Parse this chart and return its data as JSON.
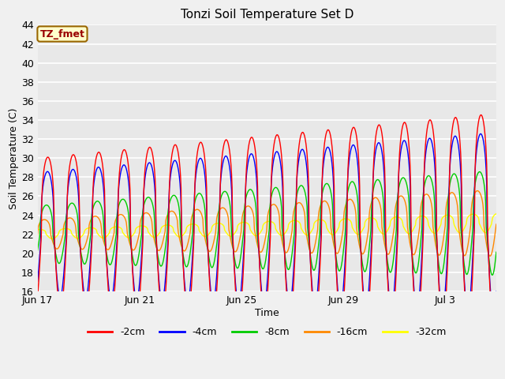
{
  "title": "Tonzi Soil Temperature Set D",
  "xlabel": "Time",
  "ylabel": "Soil Temperature (C)",
  "ylim": [
    16,
    44
  ],
  "yticks": [
    16,
    18,
    20,
    22,
    24,
    26,
    28,
    30,
    32,
    34,
    36,
    38,
    40,
    42,
    44
  ],
  "xtick_labels": [
    "Jun 17",
    "Jun 21",
    "Jun 25",
    "Jun 29",
    "Jul 3"
  ],
  "xtick_positions": [
    0,
    4,
    8,
    12,
    16
  ],
  "n_days": 18,
  "legend_labels": [
    "-2cm",
    "-4cm",
    "-8cm",
    "-16cm",
    "-32cm"
  ],
  "line_colors": [
    "#ff0000",
    "#0000ff",
    "#00cc00",
    "#ff8800",
    "#ffff00"
  ],
  "label_text": "TZ_fmet",
  "label_bg": "#ffffcc",
  "label_border": "#cc0000",
  "plot_bg": "#e8e8e8",
  "fig_bg": "#f0f0f0",
  "base_mean": 22.0,
  "base_trend": 1.2,
  "amp2_start": 8.0,
  "amp2_end": 11.5,
  "amp4_start": 6.5,
  "amp4_end": 9.5,
  "amp8_start": 3.0,
  "amp8_end": 5.5,
  "amp16_start": 1.5,
  "amp16_end": 3.5,
  "amp32_start": 0.5,
  "amp32_end": 1.0,
  "phase_4cm": 0.08,
  "phase_8cm": 0.35,
  "phase_16cm": 0.9,
  "phase_32cm": 2.0,
  "sharpness": 3.0
}
